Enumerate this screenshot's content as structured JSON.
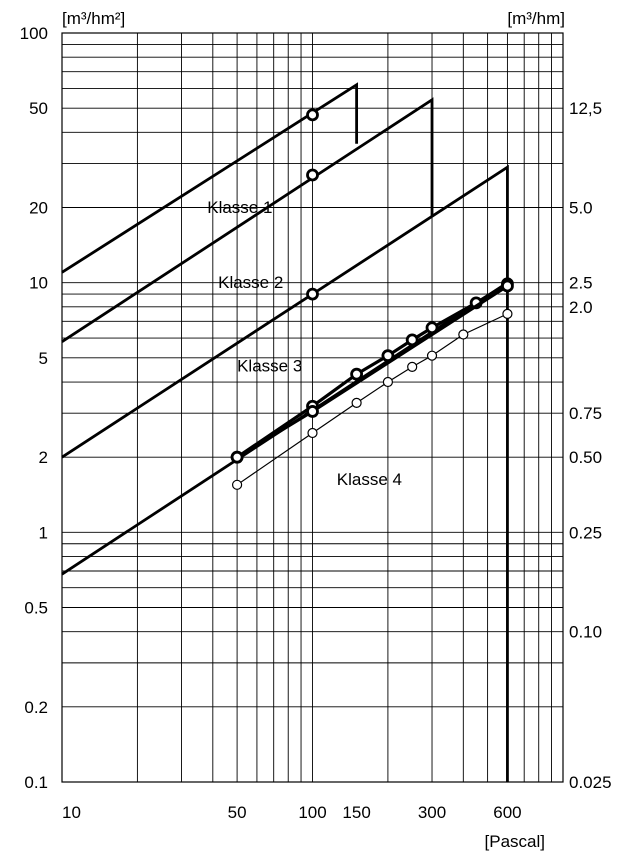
{
  "chart_data": {
    "type": "line",
    "x_scale": "log",
    "y_scale": "log",
    "xlim": [
      10,
      1000
    ],
    "ylim": [
      0.1,
      100
    ],
    "grid": true,
    "left_unit": "[m³/hm²]",
    "right_unit": "[m³/hm]",
    "xlabel": "[Pascal]",
    "x_ticks": [
      {
        "value": 10,
        "label": "10"
      },
      {
        "value": 50,
        "label": "50"
      },
      {
        "value": 100,
        "label": "100"
      },
      {
        "value": 150,
        "label": "150"
      },
      {
        "value": 300,
        "label": "300"
      },
      {
        "value": 600,
        "label": "600"
      }
    ],
    "y_ticks_left": [
      {
        "value": 100,
        "label": "100"
      },
      {
        "value": 50,
        "label": "50"
      },
      {
        "value": 20,
        "label": "20"
      },
      {
        "value": 10,
        "label": "10"
      },
      {
        "value": 5,
        "label": "5"
      },
      {
        "value": 2,
        "label": "2"
      },
      {
        "value": 1,
        "label": "1"
      },
      {
        "value": 0.5,
        "label": "0.5"
      },
      {
        "value": 0.2,
        "label": "0.2"
      },
      {
        "value": 0.1,
        "label": "0.1"
      }
    ],
    "y_ticks_right": [
      {
        "value": 50,
        "label": "12,5"
      },
      {
        "value": 20,
        "label": "5.0"
      },
      {
        "value": 10,
        "label": "2.5"
      },
      {
        "value": 8,
        "label": "2.0"
      },
      {
        "value": 3,
        "label": "0.75"
      },
      {
        "value": 2,
        "label": "0.50"
      },
      {
        "value": 1,
        "label": "0.25"
      },
      {
        "value": 0.4,
        "label": "0.10"
      },
      {
        "value": 0.1,
        "label": "0.025"
      }
    ],
    "class_limits": [
      {
        "name": "Klasse 1",
        "label_at": [
          38,
          19
        ],
        "points": [
          [
            10,
            11
          ],
          [
            150,
            62
          ],
          [
            150,
            36
          ]
        ]
      },
      {
        "name": "Klasse 2",
        "label_at": [
          42,
          9.5
        ],
        "points": [
          [
            10,
            5.8
          ],
          [
            300,
            54
          ],
          [
            300,
            18.5
          ]
        ]
      },
      {
        "name": "Klasse 3",
        "label_at": [
          50,
          4.4
        ],
        "points": [
          [
            10,
            2.0
          ],
          [
            600,
            29
          ],
          [
            600,
            0.1
          ]
        ]
      },
      {
        "name": "Klasse 4",
        "label_at": [
          125,
          1.55
        ],
        "points": [
          [
            10,
            0.68
          ],
          [
            600,
            10
          ]
        ]
      }
    ],
    "series": [
      {
        "style": "thick",
        "x": [
          50,
          100,
          150,
          200,
          250,
          300,
          450,
          600
        ],
        "y": [
          2.0,
          3.2,
          4.3,
          5.1,
          5.9,
          6.6,
          8.3,
          9.9
        ]
      },
      {
        "style": "thick",
        "x": [
          50,
          100,
          600
        ],
        "y": [
          2.0,
          3.05,
          9.7
        ]
      },
      {
        "style": "thin",
        "x": [
          50,
          100,
          150,
          200,
          250,
          300,
          400,
          600
        ],
        "y": [
          1.55,
          2.5,
          3.3,
          4.0,
          4.6,
          5.1,
          6.2,
          7.5
        ]
      }
    ],
    "reference_points": [
      {
        "x": 100,
        "y": 47
      },
      {
        "x": 100,
        "y": 27
      },
      {
        "x": 100,
        "y": 9
      }
    ]
  }
}
